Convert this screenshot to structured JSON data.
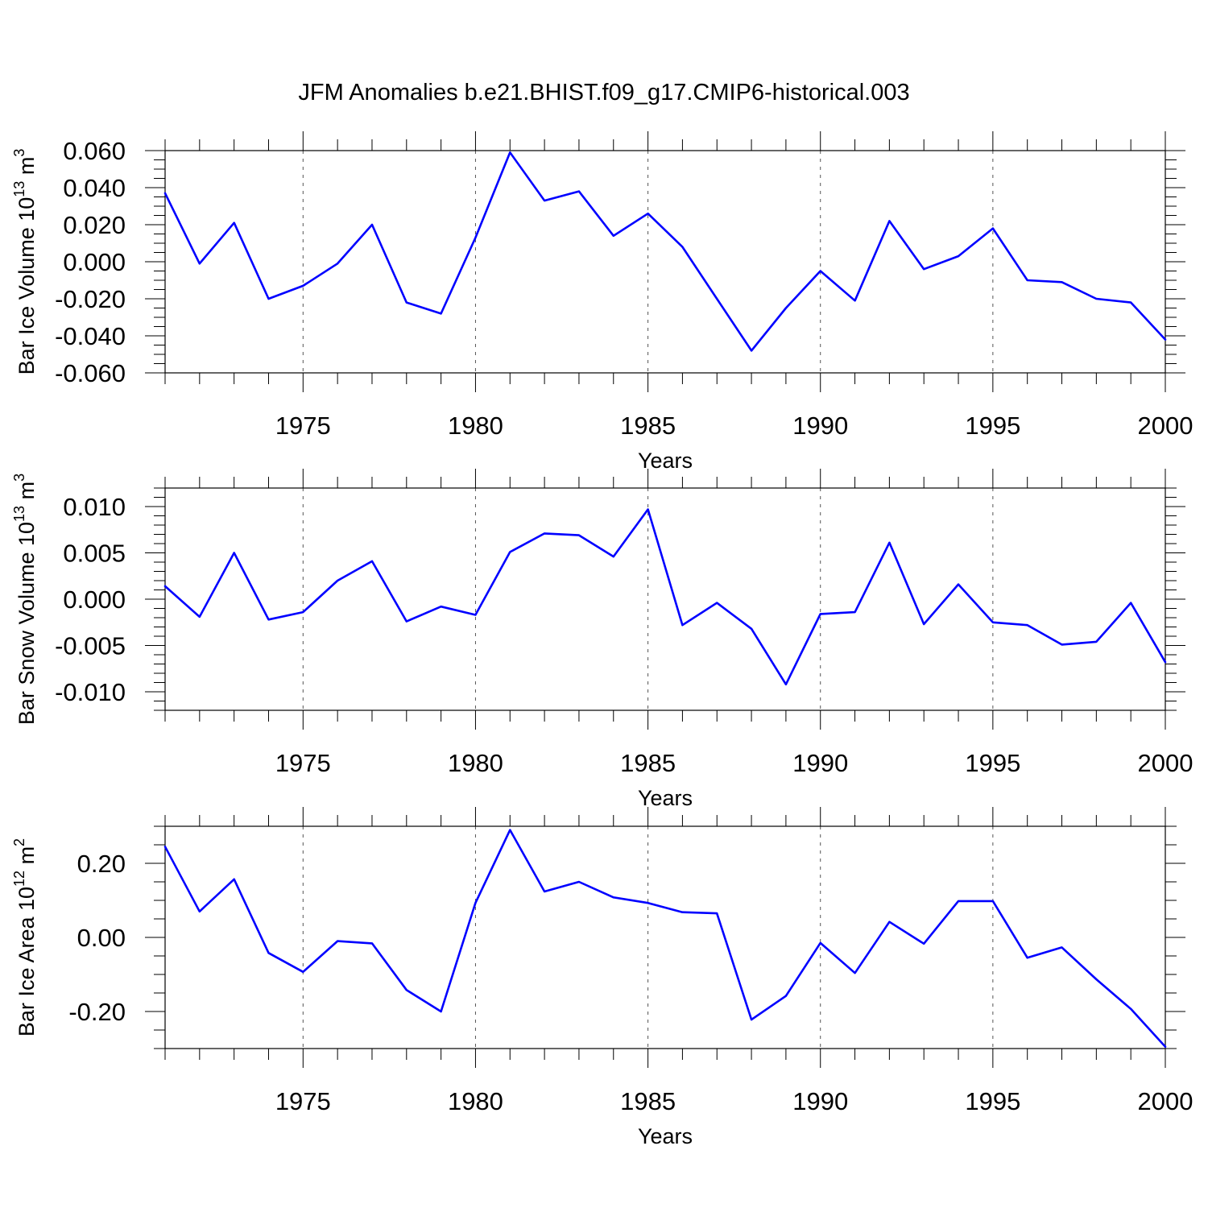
{
  "title": "JFM Anomalies b.e21.BHIST.f09_g17.CMIP6-historical.003",
  "line_color": "#0000ff",
  "chart_data": [
    {
      "type": "line",
      "ylabel": "Bar Ice Volume 10",
      "ylabel_exp": "13",
      "ylabel_unit": " m",
      "ylabel_unit_exp": "3",
      "xlabel": "Years",
      "xlim": [
        1971,
        2000
      ],
      "ylim": [
        -0.06,
        0.06
      ],
      "grid": "vertical dashed at major x ticks",
      "x_ticks": [
        1975,
        1980,
        1985,
        1990,
        1995,
        2000
      ],
      "x_tick_labels": [
        "1975",
        "1980",
        "1985",
        "1990",
        "1995",
        "2000"
      ],
      "y_ticks": [
        -0.06,
        -0.04,
        -0.02,
        0.0,
        0.02,
        0.04,
        0.06
      ],
      "y_tick_labels": [
        "-0.060",
        "-0.040",
        "-0.020",
        "0.000",
        "0.020",
        "0.040",
        "0.060"
      ],
      "y_minor_step": 0.005,
      "x": [
        1971,
        1972,
        1973,
        1974,
        1975,
        1976,
        1977,
        1978,
        1979,
        1980,
        1981,
        1982,
        1983,
        1984,
        1985,
        1986,
        1987,
        1988,
        1989,
        1990,
        1991,
        1992,
        1993,
        1994,
        1995,
        1996,
        1997,
        1998,
        1999,
        2000
      ],
      "series": [
        {
          "values": [
            0.037,
            -0.001,
            0.021,
            -0.02,
            -0.013,
            -0.001,
            0.02,
            -0.022,
            -0.028,
            0.013,
            0.059,
            0.033,
            0.038,
            0.014,
            0.026,
            0.008,
            -0.02,
            -0.048,
            -0.025,
            -0.005,
            -0.021,
            0.022,
            -0.004,
            0.003,
            0.018,
            -0.01,
            -0.011,
            -0.02,
            -0.022,
            -0.042
          ]
        }
      ]
    },
    {
      "type": "line",
      "ylabel": "Bar Snow Volume 10",
      "ylabel_exp": "13",
      "ylabel_unit": " m",
      "ylabel_unit_exp": "3",
      "xlabel": "Years",
      "xlim": [
        1971,
        2000
      ],
      "ylim": [
        -0.012,
        0.012
      ],
      "grid": "vertical dashed at major x ticks",
      "x_ticks": [
        1975,
        1980,
        1985,
        1990,
        1995,
        2000
      ],
      "x_tick_labels": [
        "1975",
        "1980",
        "1985",
        "1990",
        "1995",
        "2000"
      ],
      "y_ticks": [
        -0.01,
        -0.005,
        0.0,
        0.005,
        0.01
      ],
      "y_tick_labels": [
        "-0.010",
        "-0.005",
        "0.000",
        "0.005",
        "0.010"
      ],
      "y_minor_step": 0.001,
      "x": [
        1971,
        1972,
        1973,
        1974,
        1975,
        1976,
        1977,
        1978,
        1979,
        1980,
        1981,
        1982,
        1983,
        1984,
        1985,
        1986,
        1987,
        1988,
        1989,
        1990,
        1991,
        1992,
        1993,
        1994,
        1995,
        1996,
        1997,
        1998,
        1999,
        2000
      ],
      "series": [
        {
          "values": [
            0.0014,
            -0.0019,
            0.005,
            -0.0022,
            -0.0014,
            0.002,
            0.0041,
            -0.0024,
            -0.0008,
            -0.0017,
            0.0051,
            0.0071,
            0.0069,
            0.0046,
            0.0097,
            -0.0028,
            -0.0004,
            -0.0032,
            -0.0092,
            -0.0016,
            -0.0014,
            0.0061,
            -0.0027,
            0.0016,
            -0.0025,
            -0.0028,
            -0.0049,
            -0.0046,
            -0.0004,
            -0.0068
          ]
        }
      ]
    },
    {
      "type": "line",
      "ylabel": "Bar Ice Area 10",
      "ylabel_exp": "12",
      "ylabel_unit": " m",
      "ylabel_unit_exp": "2",
      "xlabel": "Years",
      "xlim": [
        1971,
        2000
      ],
      "ylim": [
        -0.3,
        0.3
      ],
      "grid": "vertical dashed at major x ticks",
      "x_ticks": [
        1975,
        1980,
        1985,
        1990,
        1995,
        2000
      ],
      "x_tick_labels": [
        "1975",
        "1980",
        "1985",
        "1990",
        "1995",
        "2000"
      ],
      "y_ticks": [
        -0.2,
        0.0,
        0.2
      ],
      "y_tick_labels": [
        "-0.20",
        "0.00",
        "0.20"
      ],
      "y_minor_step": 0.05,
      "x": [
        1971,
        1972,
        1973,
        1974,
        1975,
        1976,
        1977,
        1978,
        1979,
        1980,
        1981,
        1982,
        1983,
        1984,
        1985,
        1986,
        1987,
        1988,
        1989,
        1990,
        1991,
        1992,
        1993,
        1994,
        1995,
        1996,
        1997,
        1998,
        1999,
        2000
      ],
      "series": [
        {
          "values": [
            0.245,
            0.07,
            0.157,
            -0.042,
            -0.093,
            -0.01,
            -0.016,
            -0.142,
            -0.2,
            0.093,
            0.29,
            0.124,
            0.15,
            0.108,
            0.093,
            0.068,
            0.065,
            -0.222,
            -0.158,
            -0.015,
            -0.096,
            0.042,
            -0.017,
            0.098,
            0.098,
            -0.055,
            -0.027,
            -0.113,
            -0.193,
            -0.295
          ]
        }
      ]
    }
  ]
}
